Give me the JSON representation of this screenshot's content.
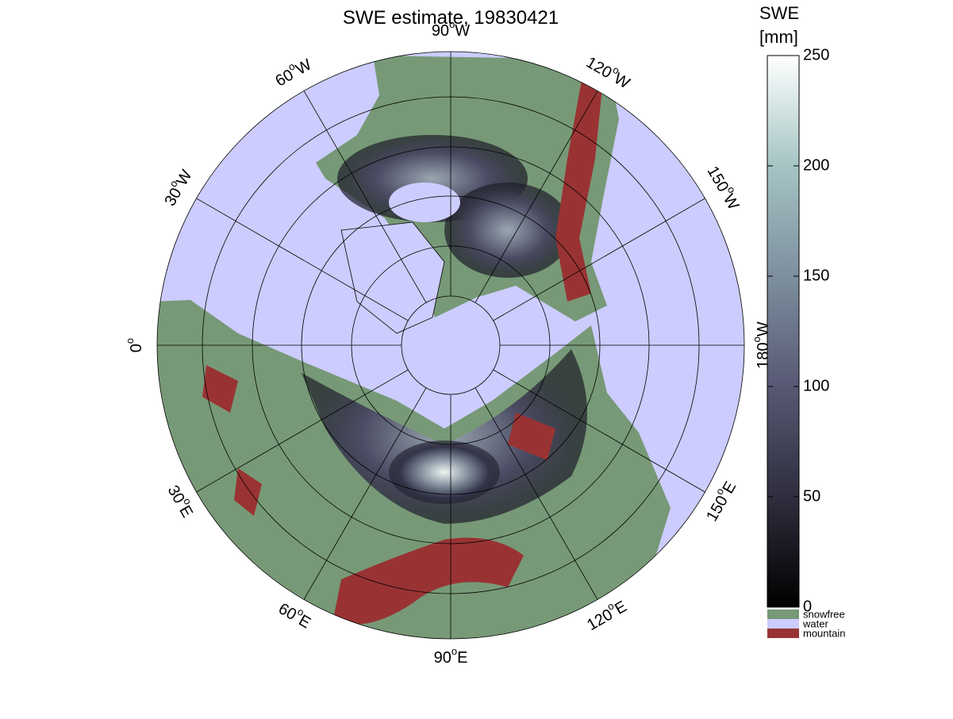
{
  "chart_data": {
    "type": "polar-map",
    "title": "SWE estimate, 19830421",
    "degree_symbol": "o",
    "meridians": [
      {
        "deg": "90",
        "dir": "W"
      },
      {
        "deg": "120",
        "dir": "W"
      },
      {
        "deg": "150",
        "dir": "W"
      },
      {
        "deg": "180",
        "dir": "W"
      },
      {
        "deg": "150",
        "dir": "E"
      },
      {
        "deg": "120",
        "dir": "E"
      },
      {
        "deg": "90",
        "dir": "E"
      },
      {
        "deg": "60",
        "dir": "E"
      },
      {
        "deg": "30",
        "dir": "E"
      },
      {
        "deg": "0",
        "dir": ""
      },
      {
        "deg": "30",
        "dir": "W"
      },
      {
        "deg": "60",
        "dir": "W"
      }
    ],
    "colorbar": {
      "label": [
        "SWE",
        "[mm]"
      ],
      "lim": [
        0,
        250
      ],
      "ticks": [
        0,
        50,
        100,
        150,
        200,
        250
      ],
      "colormap": [
        "#000000",
        "#2e2e3e",
        "#585874",
        "#7d8f9e",
        "#a5c4c4",
        "#ffffff"
      ]
    },
    "legend": [
      {
        "name": "snowfree",
        "color": "#779977"
      },
      {
        "name": "water",
        "color": "#ccccff"
      },
      {
        "name": "mountain",
        "color": "#993333"
      }
    ]
  }
}
